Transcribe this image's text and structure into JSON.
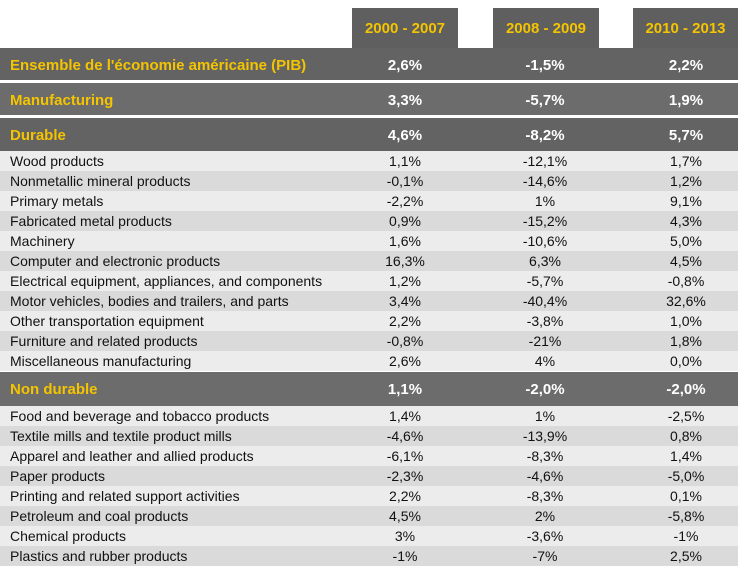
{
  "headers": [
    "2000 - 2007",
    "2008 - 2009",
    "2010 - 2013"
  ],
  "sections": {
    "gdp": {
      "label": "Ensemble de l'économie américaine (PIB)",
      "values": [
        "2,6%",
        "-1,5%",
        "2,2%"
      ]
    },
    "manufacturing": {
      "label": "Manufacturing",
      "values": [
        "3,3%",
        "-5,7%",
        "1,9%"
      ]
    },
    "durable": {
      "label": "Durable",
      "values": [
        "4,6%",
        "-8,2%",
        "5,7%"
      ]
    },
    "non_durable": {
      "label": "Non durable",
      "values": [
        "1,1%",
        "-2,0%",
        "-2,0%"
      ]
    }
  },
  "durable_items": [
    {
      "label": "Wood products",
      "values": [
        "1,1%",
        "-12,1%",
        "1,7%"
      ]
    },
    {
      "label": "Nonmetallic mineral products",
      "values": [
        "-0,1%",
        "-14,6%",
        "1,2%"
      ]
    },
    {
      "label": "Primary metals",
      "values": [
        "-2,2%",
        "1%",
        "9,1%"
      ]
    },
    {
      "label": "Fabricated metal products",
      "values": [
        "0,9%",
        "-15,2%",
        "4,3%"
      ]
    },
    {
      "label": "Machinery",
      "values": [
        "1,6%",
        "-10,6%",
        "5,0%"
      ]
    },
    {
      "label": "Computer and electronic products",
      "values": [
        "16,3%",
        "6,3%",
        "4,5%"
      ]
    },
    {
      "label": "Electrical equipment, appliances, and components",
      "values": [
        "1,2%",
        "-5,7%",
        "-0,8%"
      ]
    },
    {
      "label": "Motor vehicles, bodies and trailers, and parts",
      "values": [
        "3,4%",
        "-40,4%",
        "32,6%"
      ]
    },
    {
      "label": "Other transportation equipment",
      "values": [
        "2,2%",
        "-3,8%",
        "1,0%"
      ]
    },
    {
      "label": "Furniture and related products",
      "values": [
        "-0,8%",
        "-21%",
        "1,8%"
      ]
    },
    {
      "label": "Miscellaneous manufacturing",
      "values": [
        "2,6%",
        "4%",
        "0,0%"
      ]
    }
  ],
  "non_durable_items": [
    {
      "label": "Food and beverage and tobacco products",
      "values": [
        "1,4%",
        "1%",
        "-2,5%"
      ]
    },
    {
      "label": "Textile mills and textile product mills",
      "values": [
        "-4,6%",
        "-13,9%",
        "0,8%"
      ]
    },
    {
      "label": "Apparel and leather and allied products",
      "values": [
        "-6,1%",
        "-8,3%",
        "1,4%"
      ]
    },
    {
      "label": "Paper products",
      "values": [
        "-2,3%",
        "-4,6%",
        "-5,0%"
      ]
    },
    {
      "label": "Printing and related support activities",
      "values": [
        "2,2%",
        "-8,3%",
        "0,1%"
      ]
    },
    {
      "label": "Petroleum and coal products",
      "values": [
        "4,5%",
        "2%",
        "-5,8%"
      ]
    },
    {
      "label": "Chemical products",
      "values": [
        "3%",
        "-3,6%",
        "-1%"
      ]
    },
    {
      "label": "Plastics and rubber products",
      "values": [
        "-1%",
        "-7%",
        "2,5%"
      ]
    }
  ]
}
